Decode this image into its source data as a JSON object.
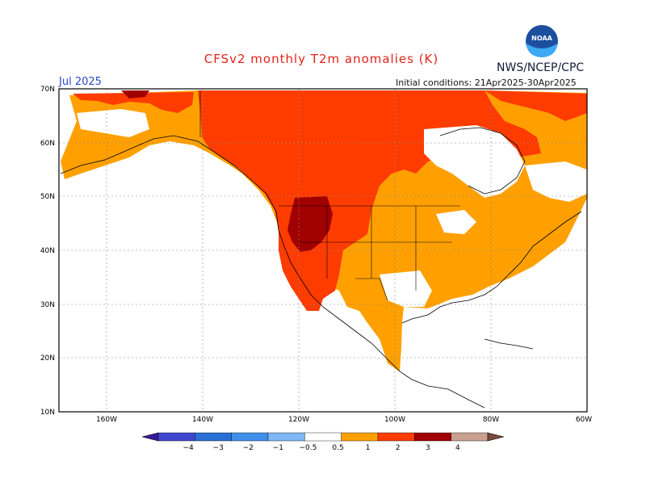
{
  "title": "CFSv2 monthly T2m anomalies (K)",
  "agency": "NWS/NCEP/CPC",
  "month": "Jul 2025",
  "initial_conditions": "Initial conditions: 21Apr2025-30Apr2025",
  "logo_text": "NOAA",
  "lat_labels": [
    "70N",
    "60N",
    "50N",
    "40N",
    "30N",
    "20N",
    "10N"
  ],
  "lon_labels": [
    "160W",
    "140W",
    "120W",
    "100W",
    "80W",
    "60W"
  ],
  "colorbar": {
    "labels": [
      "−4",
      "−3",
      "−2",
      "−1",
      "−0.5",
      "0.5",
      "1",
      "2",
      "3",
      "4"
    ],
    "colors": [
      "#3a1a9a",
      "#4146d0",
      "#2a6fd6",
      "#3f8fe8",
      "#7fb6f4",
      "#ffffff",
      "#ffa000",
      "#ff3c00",
      "#a00000",
      "#c9a08f",
      "#7a4a3a"
    ]
  },
  "palette": {
    "band_0_5_1": "#ffa000",
    "band_1_2": "#ff3c00",
    "band_2_3": "#a00000",
    "band_3_4": "#c9a08f"
  }
}
